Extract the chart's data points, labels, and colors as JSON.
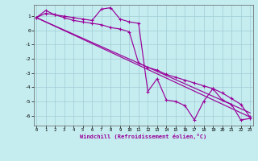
{
  "bg_color": "#c5edf0",
  "grid_color": "#a0cdd4",
  "line_color": "#990099",
  "xlabel": "Windchill (Refroidissement éolien,°C)",
  "xlim": [
    -0.3,
    23.3
  ],
  "ylim": [
    -6.7,
    1.8
  ],
  "yticks": [
    1,
    0,
    -1,
    -2,
    -3,
    -4,
    -5,
    -6
  ],
  "xticks": [
    0,
    1,
    2,
    3,
    4,
    5,
    6,
    7,
    8,
    9,
    10,
    11,
    12,
    13,
    14,
    15,
    16,
    17,
    18,
    19,
    20,
    21,
    22,
    23
  ],
  "s_jagged_x": [
    0,
    1,
    2,
    3,
    4,
    5,
    6,
    7,
    8,
    9,
    10,
    11,
    12,
    13,
    14,
    15,
    16,
    17,
    18,
    19,
    20,
    21,
    22,
    23
  ],
  "s_jagged_y": [
    0.9,
    1.4,
    1.1,
    1.0,
    0.9,
    0.8,
    0.7,
    1.5,
    1.6,
    0.8,
    0.6,
    0.5,
    -4.3,
    -3.4,
    -4.9,
    -5.0,
    -5.3,
    -6.3,
    -5.0,
    -4.1,
    -4.9,
    -5.2,
    -6.3,
    -6.2
  ],
  "s_line1_x": [
    0,
    1,
    2,
    3,
    4,
    5,
    6,
    7,
    8,
    9,
    10,
    11,
    12,
    13,
    14,
    15,
    16,
    17,
    18,
    19,
    20,
    21,
    22,
    23
  ],
  "s_line1_y": [
    0.9,
    1.2,
    1.1,
    0.9,
    0.7,
    0.6,
    0.5,
    0.4,
    0.2,
    0.1,
    -0.1,
    -2.3,
    -2.6,
    -2.8,
    -3.1,
    -3.3,
    -3.5,
    -3.7,
    -3.9,
    -4.1,
    -4.4,
    -4.8,
    -5.2,
    -6.1
  ],
  "s_line2_x": [
    0,
    23
  ],
  "s_line2_y": [
    0.9,
    -6.1
  ]
}
